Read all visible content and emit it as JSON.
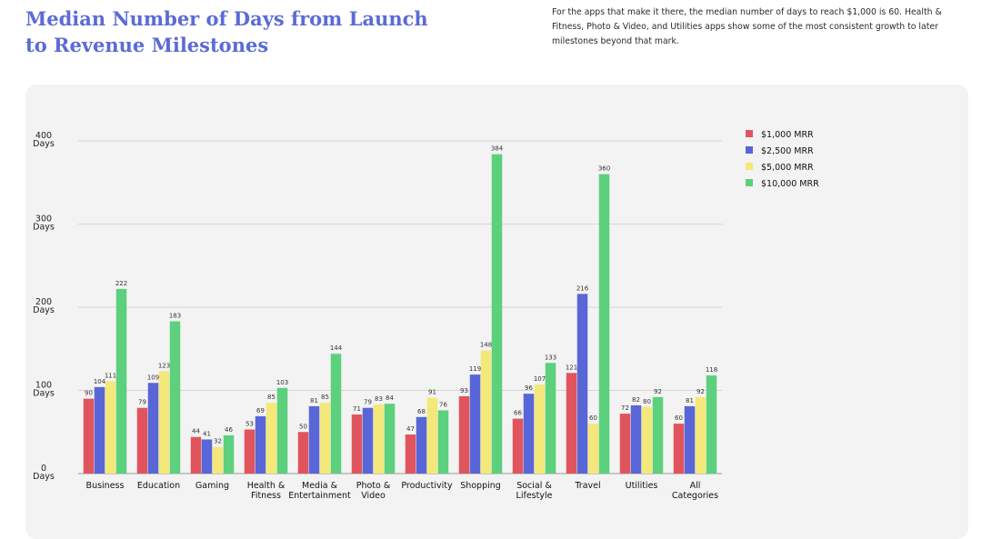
{
  "header": {
    "title": "Median Number of Days from Launch to Revenue Milestones",
    "description": "For the apps that make it there, the median number of days to reach $1,000 is 60. Health & Fitness, Photo & Video, and Utilities apps show some of the most consistent growth to later milestones beyond that mark."
  },
  "chart_data": {
    "type": "bar",
    "title": "Median Number of Days from Launch to Revenue Milestones",
    "xlabel": "",
    "ylabel": "",
    "ylim": [
      0,
      400
    ],
    "grid": true,
    "legend_position": "top-right",
    "y_ticks": [
      {
        "value": 0,
        "line1": "0",
        "line2": "Days"
      },
      {
        "value": 100,
        "line1": "100",
        "line2": "Days"
      },
      {
        "value": 200,
        "line1": "200",
        "line2": "Days"
      },
      {
        "value": 300,
        "line1": "300",
        "line2": "Days"
      },
      {
        "value": 400,
        "line1": "400",
        "line2": "Days"
      }
    ],
    "categories": [
      [
        "Business"
      ],
      [
        "Education"
      ],
      [
        "Gaming"
      ],
      [
        "Health &",
        "Fitness"
      ],
      [
        "Media &",
        "Entertainment"
      ],
      [
        "Photo &",
        "Video"
      ],
      [
        "Productivity"
      ],
      [
        "Shopping"
      ],
      [
        "Social &",
        "Lifestyle"
      ],
      [
        "Travel"
      ],
      [
        "Utilities"
      ],
      [
        "All",
        "Categories"
      ]
    ],
    "series": [
      {
        "name": "$1,000 MRR",
        "color": "#e0555d",
        "values": [
          90,
          79,
          44,
          53,
          50,
          71,
          47,
          93,
          66,
          121,
          72,
          60
        ]
      },
      {
        "name": "$2,500 MRR",
        "color": "#5866d8",
        "values": [
          104,
          109,
          41,
          69,
          81,
          79,
          68,
          119,
          96,
          216,
          82,
          81
        ]
      },
      {
        "name": "$5,000 MRR",
        "color": "#f3e879",
        "values": [
          111,
          123,
          32,
          85,
          85,
          83,
          91,
          148,
          107,
          60,
          80,
          92
        ]
      },
      {
        "name": "$10,000 MRR",
        "color": "#5cd07c",
        "values": [
          222,
          183,
          46,
          103,
          144,
          84,
          76,
          384,
          133,
          360,
          92,
          118
        ]
      }
    ]
  }
}
